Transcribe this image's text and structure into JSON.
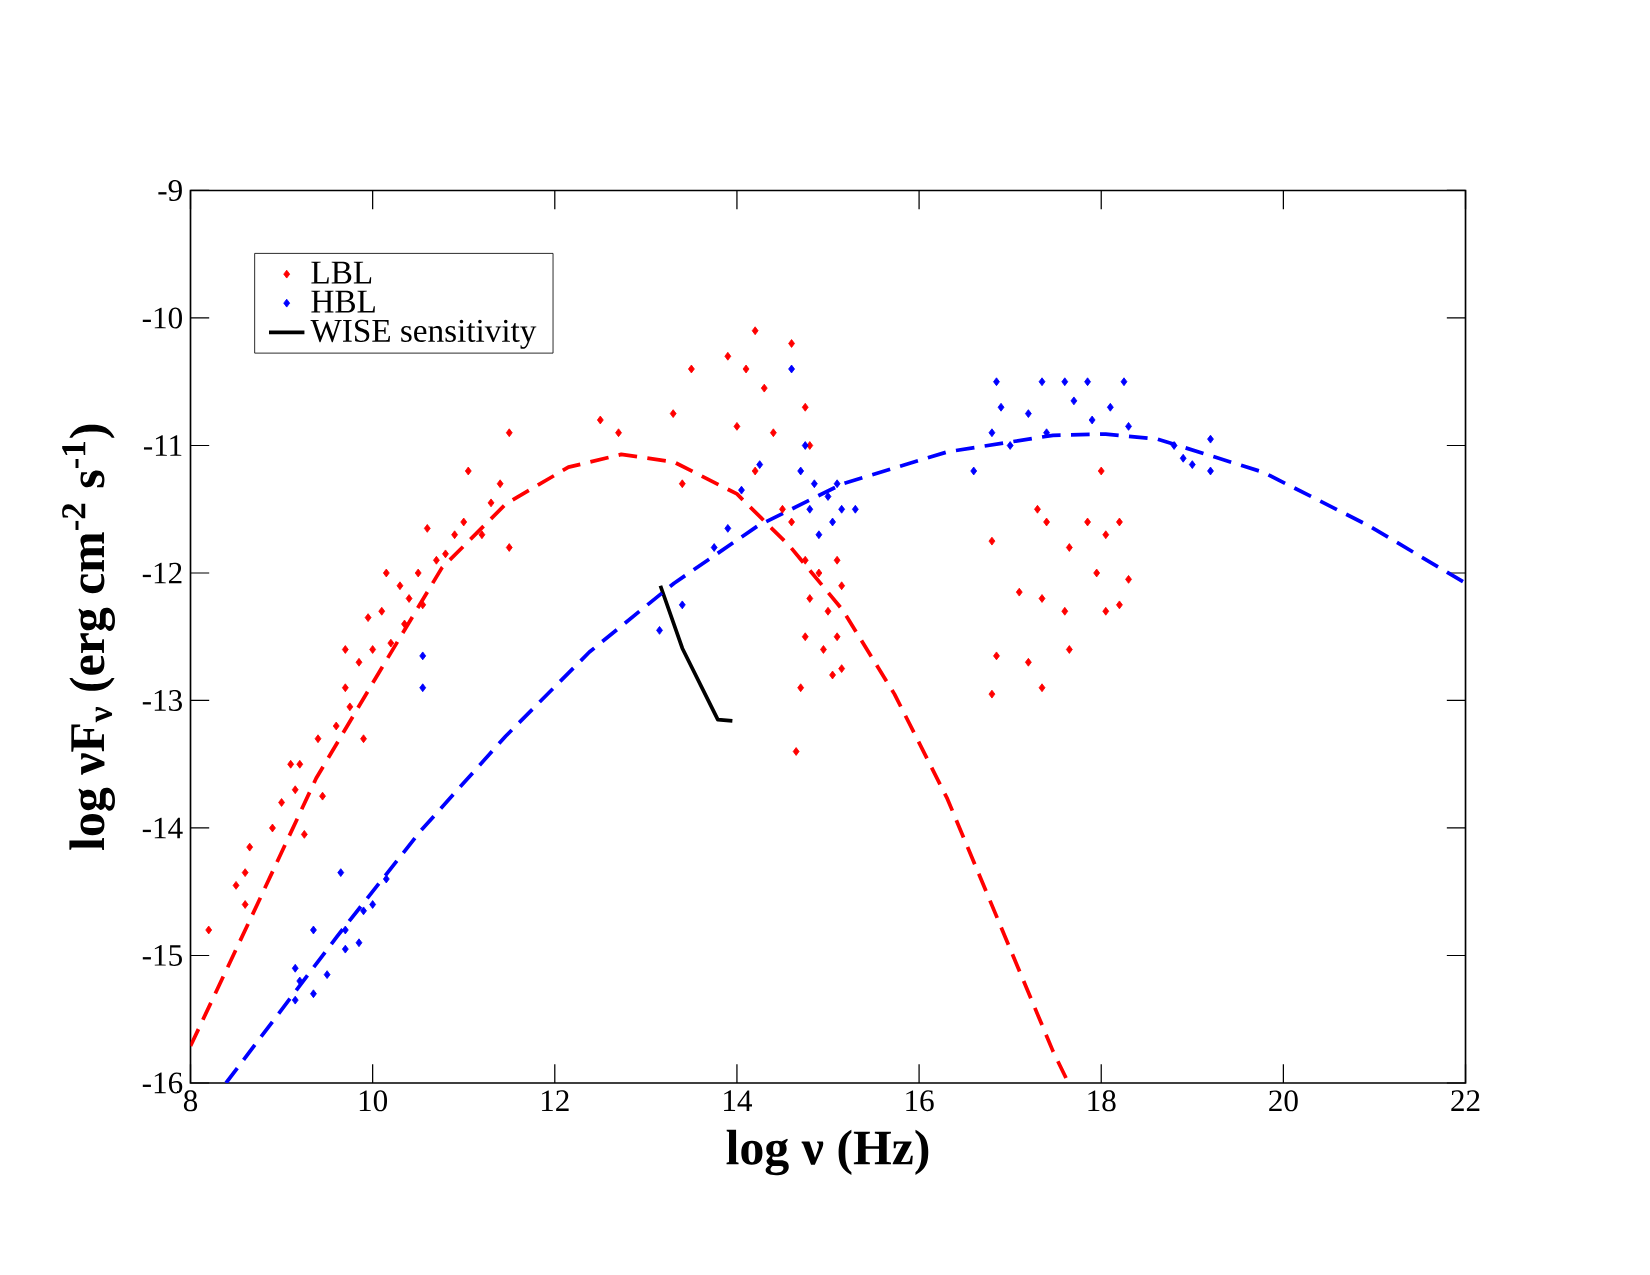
{
  "chart_data": {
    "type": "scatter",
    "xlabel": "log ν (Hz)",
    "ylabel": "log νF$_{ν}$ (erg cm$^{-2}$ s$^{-1}$)",
    "xlim": [
      8,
      22
    ],
    "ylim": [
      -16,
      -9
    ],
    "xticks": [
      8,
      10,
      12,
      14,
      16,
      18,
      20,
      22
    ],
    "yticks": [
      -16,
      -15,
      -14,
      -13,
      -12,
      -11,
      -10,
      -9
    ],
    "legend": "top left",
    "marker": "diamond",
    "series": [
      {
        "name": "LBL",
        "color": "#ff0000",
        "x": [
          8.2,
          8.5,
          8.6,
          8.65,
          8.6,
          8.9,
          9.0,
          9.1,
          9.15,
          9.2,
          9.25,
          9.4,
          9.45,
          9.6,
          9.7,
          9.7,
          9.75,
          9.85,
          9.9,
          9.95,
          10.0,
          10.1,
          10.15,
          10.2,
          10.3,
          10.35,
          10.4,
          10.5,
          10.55,
          10.6,
          10.7,
          10.8,
          10.9,
          11.0,
          11.05,
          11.2,
          11.3,
          11.4,
          11.5,
          11.5,
          12.5,
          12.7,
          13.3,
          13.5,
          13.4,
          13.9,
          14.0,
          14.1,
          14.2,
          14.3,
          14.2,
          14.4,
          14.6,
          14.5,
          14.6,
          14.65,
          14.7,
          14.75,
          14.75,
          14.75,
          14.8,
          14.8,
          14.9,
          14.95,
          15.0,
          15.05,
          15.1,
          15.1,
          15.15,
          15.15,
          16.8,
          16.85,
          16.8,
          17.1,
          17.2,
          17.3,
          17.35,
          17.35,
          17.4,
          17.6,
          17.65,
          17.65,
          17.85,
          17.95,
          18.0,
          18.05,
          18.05,
          18.2,
          18.2,
          18.3
        ],
        "values": [
          -14.8,
          -14.45,
          -14.35,
          -14.15,
          -14.6,
          -14.0,
          -13.8,
          -13.5,
          -13.7,
          -13.5,
          -14.05,
          -13.3,
          -13.75,
          -13.2,
          -12.9,
          -12.6,
          -13.05,
          -12.7,
          -13.3,
          -12.35,
          -12.6,
          -12.3,
          -12.0,
          -12.55,
          -12.1,
          -12.4,
          -12.2,
          -12.0,
          -12.25,
          -11.65,
          -11.9,
          -11.85,
          -11.7,
          -11.6,
          -11.2,
          -11.7,
          -11.45,
          -11.3,
          -10.9,
          -11.8,
          -10.8,
          -10.9,
          -10.75,
          -10.4,
          -11.3,
          -10.3,
          -10.85,
          -10.4,
          -10.1,
          -10.55,
          -11.2,
          -10.9,
          -10.2,
          -11.5,
          -11.6,
          -13.4,
          -12.9,
          -10.7,
          -11.9,
          -12.5,
          -11.0,
          -12.2,
          -12.0,
          -12.6,
          -12.3,
          -12.8,
          -11.9,
          -12.5,
          -12.75,
          -12.1,
          -11.75,
          -12.65,
          -12.95,
          -12.15,
          -12.7,
          -11.5,
          -12.2,
          -12.9,
          -11.6,
          -12.3,
          -11.8,
          -12.6,
          -11.6,
          -12.0,
          -11.2,
          -11.7,
          -12.3,
          -11.6,
          -12.25,
          -12.05
        ]
      },
      {
        "name": "HBL",
        "color": "#0000ff",
        "x": [
          9.15,
          9.15,
          9.2,
          9.35,
          9.35,
          9.5,
          9.65,
          9.7,
          9.7,
          9.85,
          9.9,
          10.0,
          10.15,
          10.55,
          10.55,
          13.15,
          13.4,
          13.75,
          13.9,
          14.05,
          14.25,
          14.6,
          14.7,
          14.75,
          14.8,
          14.85,
          14.9,
          15.0,
          15.05,
          15.1,
          15.15,
          15.3,
          16.6,
          16.8,
          16.85,
          16.9,
          17.0,
          17.2,
          17.35,
          17.4,
          17.6,
          17.7,
          17.85,
          17.9,
          18.1,
          18.25,
          18.3,
          18.8,
          18.9,
          19.0,
          19.2,
          19.2
        ],
        "values": [
          -15.1,
          -15.35,
          -15.2,
          -14.8,
          -15.3,
          -15.15,
          -14.35,
          -14.8,
          -14.95,
          -14.9,
          -14.65,
          -14.6,
          -14.4,
          -12.65,
          -12.9,
          -12.45,
          -12.25,
          -11.8,
          -11.65,
          -11.35,
          -11.15,
          -10.4,
          -11.2,
          -11.0,
          -11.5,
          -11.3,
          -11.7,
          -11.4,
          -11.6,
          -11.3,
          -11.5,
          -11.5,
          -11.2,
          -10.9,
          -10.5,
          -10.7,
          -11.0,
          -10.75,
          -10.5,
          -10.9,
          -10.5,
          -10.65,
          -10.5,
          -10.8,
          -10.7,
          -10.5,
          -10.85,
          -11.0,
          -11.1,
          -11.15,
          -10.95,
          -11.2
        ]
      },
      {
        "name": "WISE sensitivity",
        "type": "line",
        "color": "#000000",
        "line_style": "solid",
        "marker": "none",
        "x": [
          13.16,
          13.4,
          13.79,
          13.95
        ],
        "values": [
          -12.1,
          -12.59,
          -13.15,
          -13.16
        ]
      },
      {
        "type": "line",
        "color": "#ff0000",
        "line_style": "dashed",
        "marker": "none",
        "x": [
          8.0,
          8.68,
          9.38,
          10.07,
          10.76,
          11.46,
          12.15,
          12.73,
          13.31,
          14.0,
          14.58,
          15.16,
          15.73,
          16.31,
          16.89,
          17.47,
          17.64
        ],
        "values": [
          -15.71,
          -14.68,
          -13.61,
          -12.78,
          -11.96,
          -11.46,
          -11.17,
          -11.07,
          -11.13,
          -11.38,
          -11.79,
          -12.29,
          -12.95,
          -13.77,
          -14.76,
          -15.75,
          -16.0
        ]
      },
      {
        "type": "line",
        "color": "#0000ff",
        "line_style": "dashed",
        "marker": "none",
        "x": [
          8.39,
          8.91,
          9.61,
          10.53,
          11.46,
          12.38,
          13.31,
          14.23,
          15.16,
          16.31,
          17.47,
          18.05,
          18.62,
          19.78,
          20.94,
          22.0
        ],
        "values": [
          -16.0,
          -15.51,
          -14.85,
          -14.02,
          -13.28,
          -12.62,
          -12.08,
          -11.63,
          -11.3,
          -11.05,
          -10.92,
          -10.91,
          -10.95,
          -11.21,
          -11.63,
          -12.08
        ]
      }
    ]
  }
}
